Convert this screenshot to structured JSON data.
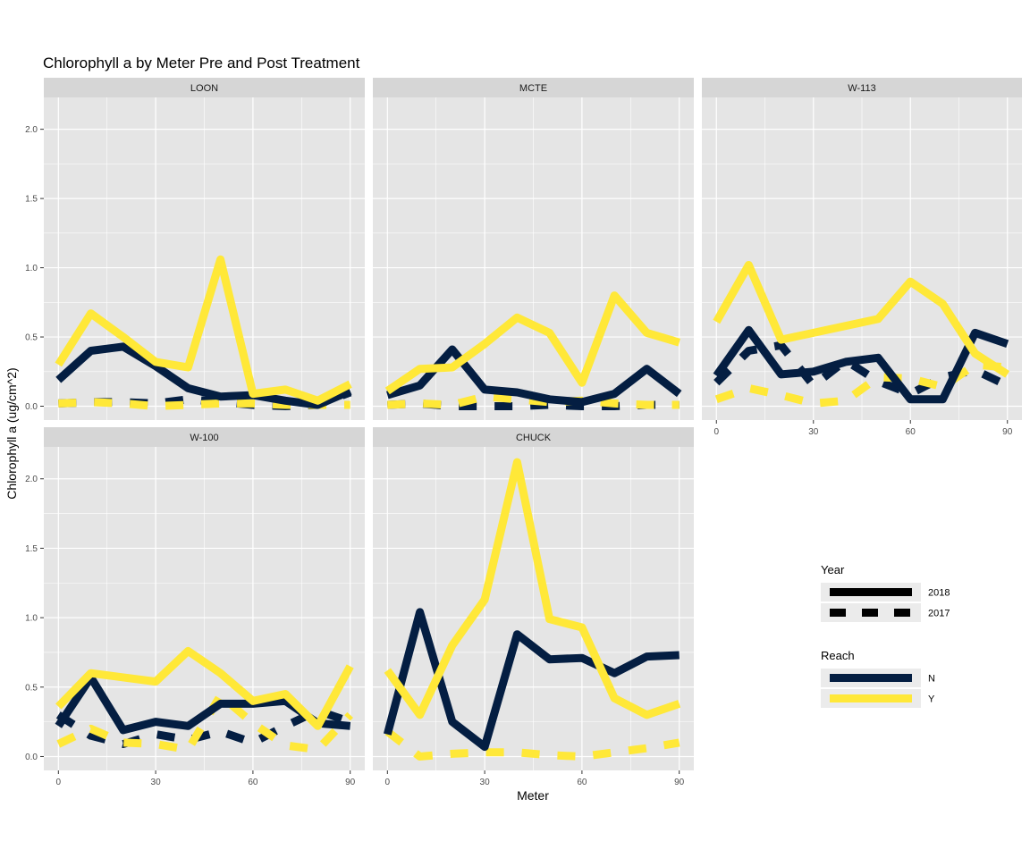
{
  "colors": {
    "N": "#041E42",
    "Y": "#FFE838",
    "panel_bg": "#E5E5E5",
    "strip_bg": "#D6D6D6",
    "grid": "#FFFFFF"
  },
  "chart_data": {
    "type": "line",
    "title": "Chlorophyll a by Meter Pre and Post Treatment",
    "xlabel": "Meter",
    "ylabel": "Chlorophyll a (ug/cm^2)",
    "x_ticks": [
      0,
      30,
      60,
      90
    ],
    "y_ticks": [
      "0.0",
      "0.5",
      "1.0",
      "1.5",
      "2.0"
    ],
    "xlim": [
      -4.5,
      94.5
    ],
    "ylim": [
      -0.1,
      2.23
    ],
    "grid": true,
    "legend": {
      "position": "right",
      "year_title": "Year",
      "year_entries": [
        {
          "label": "2018",
          "linetype": "solid"
        },
        {
          "label": "2017",
          "linetype": "dashed"
        }
      ],
      "reach_title": "Reach",
      "reach_entries": [
        {
          "label": "N",
          "color": "#041E42"
        },
        {
          "label": "Y",
          "color": "#FFE838"
        }
      ]
    },
    "x": [
      0,
      10,
      20,
      30,
      40,
      50,
      60,
      70,
      80,
      90
    ],
    "panels": [
      {
        "name": "LOON",
        "series": [
          {
            "reach": "N",
            "year": "2018",
            "values": [
              0.19,
              0.4,
              0.43,
              0.29,
              0.13,
              0.07,
              0.08,
              0.04,
              0.01,
              0.11
            ]
          },
          {
            "reach": "Y",
            "year": "2018",
            "values": [
              0.3,
              0.67,
              0.5,
              0.32,
              0.28,
              1.06,
              0.09,
              0.12,
              0.04,
              0.16
            ]
          },
          {
            "reach": "N",
            "year": "2017",
            "values": [
              0.02,
              0.03,
              0.03,
              0.02,
              0.05,
              0.03,
              0.01,
              0.0,
              0.01,
              0.1
            ]
          },
          {
            "reach": "Y",
            "year": "2017",
            "values": [
              0.02,
              0.03,
              0.02,
              0.0,
              0.01,
              0.02,
              0.02,
              0.01,
              0.01,
              0.01
            ]
          }
        ]
      },
      {
        "name": "MCTE",
        "series": [
          {
            "reach": "N",
            "year": "2018",
            "values": [
              0.08,
              0.15,
              0.41,
              0.12,
              0.1,
              0.05,
              0.03,
              0.09,
              0.27,
              0.09
            ]
          },
          {
            "reach": "Y",
            "year": "2018",
            "values": [
              0.11,
              0.27,
              0.28,
              0.45,
              0.64,
              0.53,
              0.17,
              0.8,
              0.53,
              0.46
            ]
          },
          {
            "reach": "N",
            "year": "2017",
            "values": [
              0.01,
              0.02,
              0.0,
              0.0,
              0.0,
              0.01,
              0.0,
              0.0,
              0.01,
              0.01
            ]
          },
          {
            "reach": "Y",
            "year": "2017",
            "values": [
              0.01,
              0.02,
              0.01,
              0.07,
              0.05,
              0.03,
              0.04,
              0.02,
              0.01,
              0.01
            ]
          }
        ]
      },
      {
        "name": "W-113",
        "series": [
          {
            "reach": "N",
            "year": "2018",
            "values": [
              0.22,
              0.55,
              0.23,
              0.25,
              0.32,
              0.35,
              0.05,
              0.05,
              0.53,
              0.45
            ]
          },
          {
            "reach": "Y",
            "year": "2018",
            "values": [
              0.61,
              1.02,
              0.48,
              0.53,
              0.58,
              0.63,
              0.9,
              0.74,
              0.38,
              0.23
            ]
          },
          {
            "reach": "N",
            "year": "2017",
            "values": [
              0.17,
              0.4,
              0.44,
              0.15,
              0.33,
              0.18,
              0.09,
              0.21,
              0.26,
              0.15
            ]
          },
          {
            "reach": "Y",
            "year": "2017",
            "values": [
              0.05,
              0.13,
              0.08,
              0.02,
              0.04,
              0.21,
              0.2,
              0.14,
              0.3,
              0.28
            ]
          }
        ]
      },
      {
        "name": "W-100",
        "series": [
          {
            "reach": "N",
            "year": "2018",
            "values": [
              0.22,
              0.57,
              0.19,
              0.25,
              0.22,
              0.38,
              0.38,
              0.4,
              0.24,
              0.22
            ]
          },
          {
            "reach": "Y",
            "year": "2018",
            "values": [
              0.36,
              0.6,
              0.57,
              0.54,
              0.76,
              0.6,
              0.4,
              0.45,
              0.22,
              0.65
            ]
          },
          {
            "reach": "N",
            "year": "2017",
            "values": [
              0.3,
              0.15,
              0.09,
              0.16,
              0.12,
              0.18,
              0.1,
              0.22,
              0.33,
              0.25
            ]
          },
          {
            "reach": "Y",
            "year": "2017",
            "values": [
              0.09,
              0.2,
              0.1,
              0.09,
              0.05,
              0.44,
              0.24,
              0.08,
              0.05,
              0.3
            ]
          }
        ]
      },
      {
        "name": "CHUCK",
        "series": [
          {
            "reach": "N",
            "year": "2018",
            "values": [
              0.16,
              1.04,
              0.25,
              0.07,
              0.88,
              0.7,
              0.71,
              0.6,
              0.72,
              0.73
            ]
          },
          {
            "reach": "Y",
            "year": "2018",
            "values": [
              0.62,
              0.3,
              0.8,
              1.13,
              2.12,
              0.99,
              0.93,
              0.42,
              0.3,
              0.38
            ]
          },
          {
            "reach": "Y",
            "year": "2017",
            "values": [
              0.18,
              0.0,
              0.02,
              0.03,
              0.03,
              0.01,
              0.0,
              0.03,
              0.06,
              0.1
            ]
          }
        ]
      }
    ]
  }
}
